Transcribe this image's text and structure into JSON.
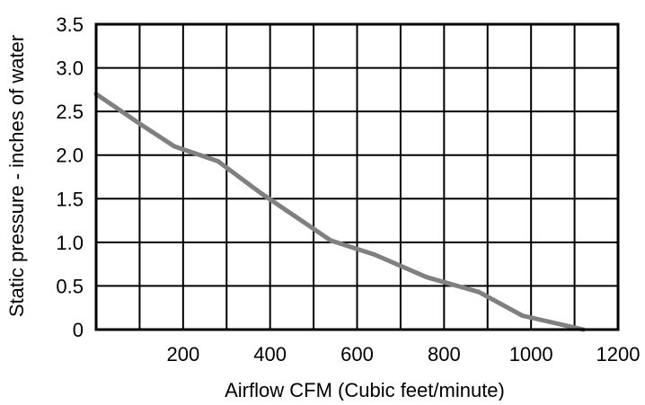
{
  "chart_data": {
    "type": "line",
    "title": "",
    "xlabel": "Airflow CFM (Cubic feet/minute)",
    "ylabel": "Static pressure - inches of water",
    "xlim": [
      0,
      1200
    ],
    "ylim": [
      0,
      3.5
    ],
    "x_ticks": [
      {
        "value": 200,
        "label": "200"
      },
      {
        "value": 400,
        "label": "400"
      },
      {
        "value": 600,
        "label": "600"
      },
      {
        "value": 800,
        "label": "800"
      },
      {
        "value": 1000,
        "label": "1000"
      },
      {
        "value": 1200,
        "label": "1200"
      }
    ],
    "y_ticks": [
      {
        "value": 0,
        "label": "0"
      },
      {
        "value": 0.5,
        "label": "0.5"
      },
      {
        "value": 1.0,
        "label": "1.0"
      },
      {
        "value": 1.5,
        "label": "1.5"
      },
      {
        "value": 2.0,
        "label": "2.0"
      },
      {
        "value": 2.5,
        "label": "2.5"
      },
      {
        "value": 3.0,
        "label": "3.0"
      },
      {
        "value": 3.5,
        "label": "3.5"
      }
    ],
    "grid_x_step": 100,
    "grid_y_step": 0.5,
    "grid": true,
    "series": [
      {
        "color": "#808080",
        "points": [
          {
            "x": 0,
            "y": 2.7
          },
          {
            "x": 100,
            "y": 2.36
          },
          {
            "x": 180,
            "y": 2.1
          },
          {
            "x": 280,
            "y": 1.93
          },
          {
            "x": 380,
            "y": 1.56
          },
          {
            "x": 540,
            "y": 1.02
          },
          {
            "x": 640,
            "y": 0.86
          },
          {
            "x": 760,
            "y": 0.6
          },
          {
            "x": 880,
            "y": 0.43
          },
          {
            "x": 980,
            "y": 0.16
          },
          {
            "x": 1120,
            "y": 0.0
          }
        ]
      }
    ]
  }
}
